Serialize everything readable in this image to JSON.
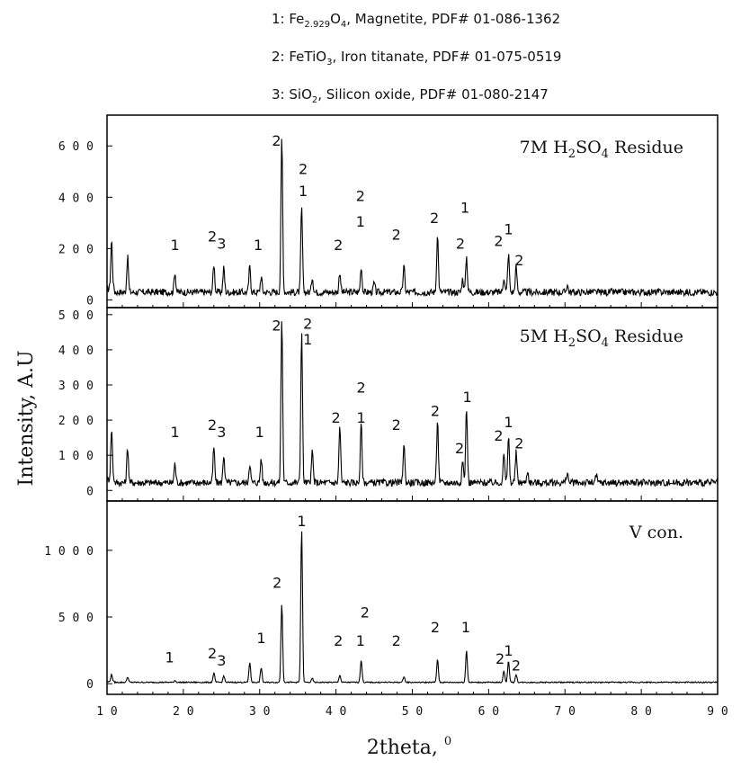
{
  "legend": [
    {
      "index": "1:",
      "formula_main": "Fe",
      "formula_sub": "2.929",
      "formula_rest": "O",
      "formula_sub2": "4",
      "text": ",  Magnetite,  PDF#  01-086-1362"
    },
    {
      "index": "2:",
      "formula_main": "FeTiO",
      "formula_sub": "3",
      "formula_rest": "",
      "formula_sub2": "",
      "text": ",  Iron titanate,  PDF#  01-075-0519"
    },
    {
      "index": "3:",
      "formula_main": "SiO",
      "formula_sub": "2",
      "formula_rest": "",
      "formula_sub2": "",
      "text": ",  Silicon  oxide,  PDF#  01-080-2147"
    }
  ],
  "chart_data": {
    "type": "line",
    "xlabel": "2theta,",
    "xlabel_sup": "0",
    "ylabel": "Intensity, A.U",
    "xlim": [
      10,
      90
    ],
    "x_ticks": [
      10,
      20,
      30,
      40,
      50,
      60,
      70,
      80,
      90
    ],
    "panels": [
      {
        "name": "7M H2SO4 Residue",
        "title_parts": [
          "7M H",
          "2",
          "SO",
          "4",
          " Residue"
        ],
        "ylim": [
          -30,
          720
        ],
        "y_ticks": [
          0,
          200,
          400,
          600
        ],
        "baseline": 30,
        "peaks": [
          [
            10.6,
            190
          ],
          [
            12.7,
            135
          ],
          [
            18.9,
            80
          ],
          [
            24.0,
            110
          ],
          [
            25.3,
            95
          ],
          [
            28.7,
            100
          ],
          [
            30.2,
            60
          ],
          [
            32.9,
            600
          ],
          [
            35.5,
            330
          ],
          [
            36.9,
            60
          ],
          [
            40.5,
            80
          ],
          [
            43.3,
            100
          ],
          [
            45.0,
            35
          ],
          [
            48.9,
            100
          ],
          [
            53.3,
            230
          ],
          [
            56.6,
            55
          ],
          [
            57.1,
            140
          ],
          [
            62.0,
            60
          ],
          [
            62.6,
            150
          ],
          [
            63.6,
            100
          ],
          [
            70.3,
            30
          ]
        ],
        "peak_labels": [
          {
            "x": 18.9,
            "y": 195,
            "text": "1"
          },
          {
            "x": 23.8,
            "y": 228,
            "text": "2"
          },
          {
            "x": 25.0,
            "y": 200,
            "text": "3"
          },
          {
            "x": 29.8,
            "y": 195,
            "text": "1"
          },
          {
            "x": 32.2,
            "y": 600,
            "text": "2"
          },
          {
            "x": 35.7,
            "y": 490,
            "text": "2"
          },
          {
            "x": 35.7,
            "y": 405,
            "text": "1"
          },
          {
            "x": 40.3,
            "y": 195,
            "text": "2"
          },
          {
            "x": 43.2,
            "y": 285,
            "text": "1"
          },
          {
            "x": 43.2,
            "y": 385,
            "text": "2"
          },
          {
            "x": 47.9,
            "y": 235,
            "text": "2"
          },
          {
            "x": 52.9,
            "y": 300,
            "text": "2"
          },
          {
            "x": 56.3,
            "y": 200,
            "text": "2"
          },
          {
            "x": 56.9,
            "y": 340,
            "text": "1"
          },
          {
            "x": 61.3,
            "y": 210,
            "text": "2"
          },
          {
            "x": 62.6,
            "y": 255,
            "text": "1"
          },
          {
            "x": 64.0,
            "y": 135,
            "text": "2"
          }
        ]
      },
      {
        "name": "5M H2SO4 Residue",
        "title_parts": [
          "5M H",
          "2",
          "SO",
          "4",
          " Residue"
        ],
        "ylim": [
          -30,
          520
        ],
        "y_ticks": [
          0,
          100,
          200,
          300,
          400,
          500
        ],
        "baseline": 22,
        "peaks": [
          [
            10.6,
            145
          ],
          [
            12.7,
            100
          ],
          [
            18.9,
            55
          ],
          [
            24.0,
            100
          ],
          [
            25.3,
            80
          ],
          [
            28.7,
            55
          ],
          [
            30.2,
            70
          ],
          [
            32.9,
            465
          ],
          [
            35.5,
            430
          ],
          [
            36.9,
            90
          ],
          [
            40.5,
            160
          ],
          [
            43.3,
            170
          ],
          [
            48.9,
            110
          ],
          [
            53.3,
            180
          ],
          [
            56.6,
            60
          ],
          [
            57.1,
            215
          ],
          [
            62.0,
            80
          ],
          [
            62.6,
            130
          ],
          [
            63.6,
            85
          ],
          [
            65.1,
            35
          ],
          [
            70.3,
            30
          ],
          [
            74.1,
            20
          ]
        ],
        "peak_labels": [
          {
            "x": 18.9,
            "y": 152,
            "text": "1"
          },
          {
            "x": 23.8,
            "y": 172,
            "text": "2"
          },
          {
            "x": 25.0,
            "y": 152,
            "text": "3"
          },
          {
            "x": 30.0,
            "y": 152,
            "text": "1"
          },
          {
            "x": 32.2,
            "y": 455,
            "text": "2"
          },
          {
            "x": 36.3,
            "y": 460,
            "text": "2"
          },
          {
            "x": 36.3,
            "y": 415,
            "text": "1"
          },
          {
            "x": 40.0,
            "y": 192,
            "text": "2"
          },
          {
            "x": 43.3,
            "y": 192,
            "text": "1"
          },
          {
            "x": 43.3,
            "y": 278,
            "text": "2"
          },
          {
            "x": 47.9,
            "y": 172,
            "text": "2"
          },
          {
            "x": 53.0,
            "y": 212,
            "text": "2"
          },
          {
            "x": 56.2,
            "y": 105,
            "text": "2"
          },
          {
            "x": 57.2,
            "y": 252,
            "text": "1"
          },
          {
            "x": 61.3,
            "y": 142,
            "text": "2"
          },
          {
            "x": 62.6,
            "y": 180,
            "text": "1"
          },
          {
            "x": 64.0,
            "y": 120,
            "text": "2"
          }
        ]
      },
      {
        "name": "V con.",
        "title_parts": [
          "V con.",
          "",
          "",
          "",
          ""
        ],
        "ylim": [
          -80,
          1370
        ],
        "y_ticks": [
          0,
          500,
          1000
        ],
        "baseline": 10,
        "peaks": [
          [
            10.6,
            55
          ],
          [
            12.7,
            40
          ],
          [
            18.9,
            15
          ],
          [
            24.0,
            70
          ],
          [
            25.3,
            50
          ],
          [
            28.7,
            150
          ],
          [
            30.2,
            110
          ],
          [
            32.9,
            590
          ],
          [
            35.5,
            1150
          ],
          [
            36.9,
            30
          ],
          [
            40.5,
            55
          ],
          [
            43.3,
            170
          ],
          [
            48.9,
            45
          ],
          [
            53.3,
            175
          ],
          [
            57.1,
            240
          ],
          [
            62.0,
            90
          ],
          [
            62.6,
            160
          ],
          [
            63.6,
            60
          ]
        ],
        "peak_labels": [
          {
            "x": 18.2,
            "y": 160,
            "text": "1"
          },
          {
            "x": 23.8,
            "y": 190,
            "text": "2"
          },
          {
            "x": 25.0,
            "y": 135,
            "text": "3"
          },
          {
            "x": 30.2,
            "y": 305,
            "text": "1"
          },
          {
            "x": 32.3,
            "y": 720,
            "text": "2"
          },
          {
            "x": 35.5,
            "y": 1180,
            "text": "1"
          },
          {
            "x": 40.3,
            "y": 285,
            "text": "2"
          },
          {
            "x": 43.2,
            "y": 285,
            "text": "1"
          },
          {
            "x": 43.8,
            "y": 495,
            "text": "2"
          },
          {
            "x": 47.9,
            "y": 285,
            "text": "2"
          },
          {
            "x": 53.0,
            "y": 385,
            "text": "2"
          },
          {
            "x": 57.0,
            "y": 385,
            "text": "1"
          },
          {
            "x": 61.5,
            "y": 150,
            "text": "2"
          },
          {
            "x": 62.6,
            "y": 210,
            "text": "1"
          },
          {
            "x": 63.6,
            "y": 100,
            "text": "2"
          }
        ]
      }
    ]
  }
}
